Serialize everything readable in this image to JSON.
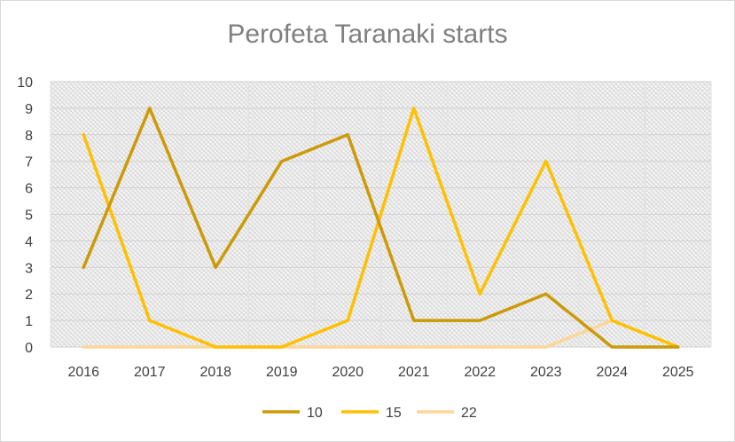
{
  "chart_data": {
    "type": "line",
    "title": "Perofeta Taranaki starts",
    "xlabel": "",
    "ylabel": "",
    "x": [
      "2016",
      "2017",
      "2018",
      "2019",
      "2020",
      "2021",
      "2022",
      "2023",
      "2024",
      "2025"
    ],
    "ylim": [
      0,
      10
    ],
    "yticks": [
      0,
      1,
      2,
      3,
      4,
      5,
      6,
      7,
      8,
      9,
      10
    ],
    "grid": true,
    "legend": "bottom",
    "series": [
      {
        "name": "10",
        "color": "#cc9a06",
        "values": [
          3,
          9,
          3,
          7,
          8,
          1,
          1,
          2,
          0,
          0
        ]
      },
      {
        "name": "15",
        "color": "#ffc000",
        "values": [
          8,
          1,
          0,
          0,
          1,
          9,
          2,
          7,
          1,
          0
        ]
      },
      {
        "name": "22",
        "color": "#ffd699",
        "values": [
          0,
          0,
          0,
          0,
          0,
          0,
          0,
          0,
          1,
          0
        ]
      }
    ]
  }
}
